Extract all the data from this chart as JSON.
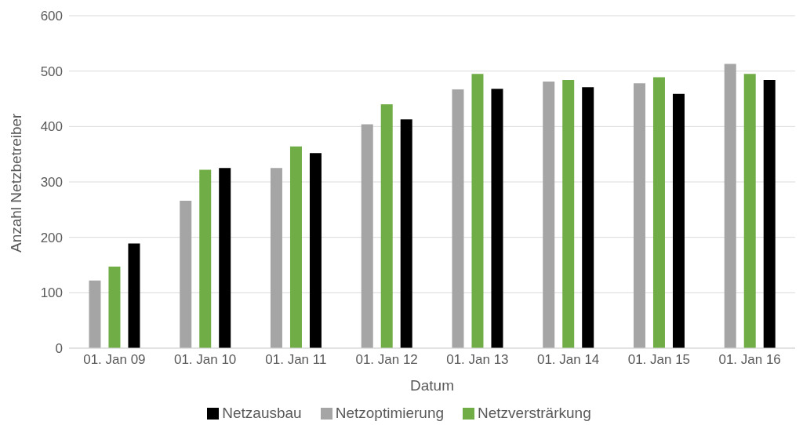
{
  "chart_data": {
    "type": "bar",
    "xlabel": "Datum",
    "ylabel": "Anzahl Netzbetreiber",
    "categories": [
      "01. Jan 09",
      "01. Jan 10",
      "01. Jan 11",
      "01. Jan 12",
      "01. Jan 13",
      "01. Jan 14",
      "01. Jan 15",
      "01. Jan 16"
    ],
    "series": [
      {
        "name": "Netzoptimierung",
        "color": "#a5a5a5",
        "values": [
          122,
          266,
          325,
          404,
          467,
          481,
          478,
          513
        ]
      },
      {
        "name": "Netzversträrkung",
        "color": "#70ad47",
        "values": [
          147,
          322,
          364,
          440,
          495,
          484,
          489,
          495
        ]
      },
      {
        "name": "Netzausbau",
        "color": "#000000",
        "values": [
          189,
          325,
          352,
          413,
          468,
          471,
          459,
          484
        ]
      }
    ],
    "ylim": [
      0,
      600
    ],
    "yticks": [
      0,
      100,
      200,
      300,
      400,
      500,
      600
    ],
    "grid": "y",
    "legend": "bottom"
  }
}
